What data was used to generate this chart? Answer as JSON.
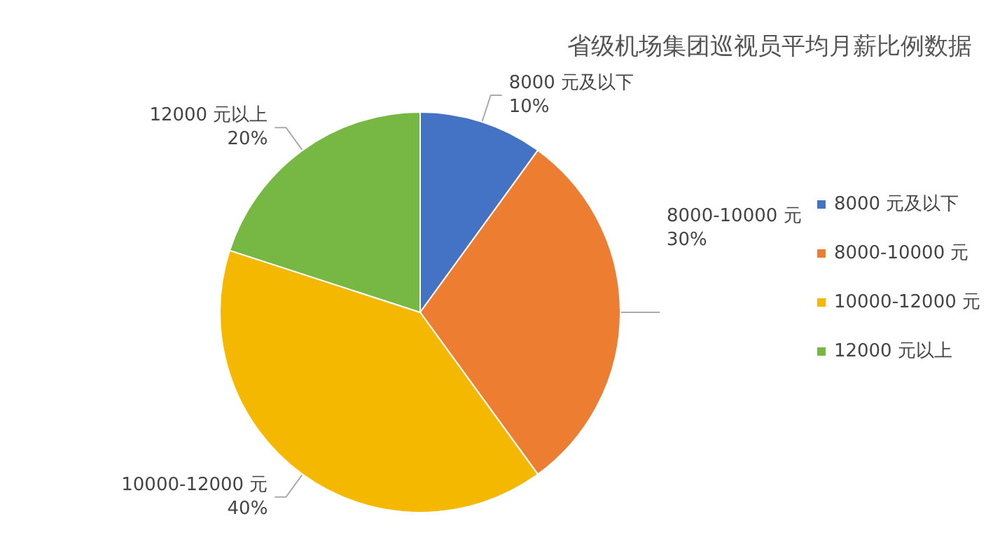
{
  "chart_data": {
    "type": "pie",
    "title": "省级机场集团巡视员平均月薪比例数据",
    "categories": [
      "8000 元及以下",
      "8000-10000 元",
      "10000-12000 元",
      "12000 元以上"
    ],
    "values": [
      10,
      30,
      40,
      20
    ],
    "value_labels": [
      "10%",
      "30%",
      "40%",
      "20%"
    ],
    "colors": [
      "#4472c4",
      "#ed7d31",
      "#f4b800",
      "#76b843"
    ],
    "data_labels": true,
    "legend": "right"
  }
}
